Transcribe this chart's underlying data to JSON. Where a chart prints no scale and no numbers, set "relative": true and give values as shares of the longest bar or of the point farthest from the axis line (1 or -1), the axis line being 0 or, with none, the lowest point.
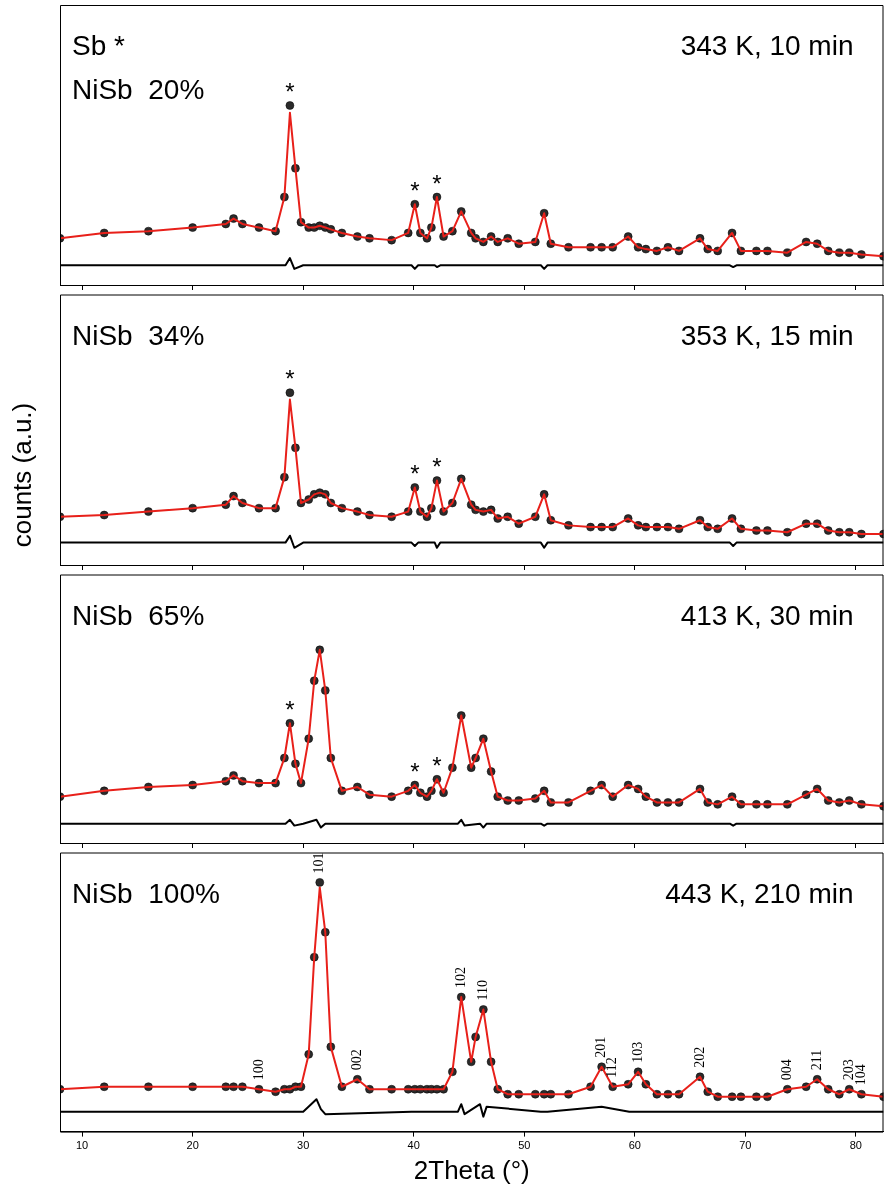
{
  "chart_data": [
    {
      "type": "scatter",
      "relative": true,
      "legend": false,
      "grid": false,
      "tick_labels": false,
      "xlim": [
        8,
        82.5
      ],
      "xticks": [
        10,
        20,
        30,
        40,
        50,
        60,
        70,
        80
      ],
      "annotations": [
        "Sb *",
        "NiSb  20%",
        "343 K, 10 min",
        {
          "text": "*",
          "x": 28.8,
          "y": 1
        },
        {
          "text": "*",
          "x": 40.1,
          "y": 0.45
        },
        {
          "text": "*",
          "x": 42.1,
          "y": 0.49
        }
      ],
      "x": [
        8,
        12,
        16,
        20,
        23,
        23.7,
        24.5,
        26,
        27.5,
        28.3,
        28.8,
        29.3,
        29.8,
        30.5,
        31,
        31.5,
        32,
        32.5,
        33.5,
        34.9,
        36,
        38,
        39.5,
        40.1,
        40.6,
        41.2,
        41.6,
        42.1,
        42.7,
        43.5,
        44.3,
        45.2,
        45.6,
        46.3,
        47,
        47.6,
        48.5,
        49.5,
        51,
        51.8,
        52.4,
        54,
        56,
        57,
        58,
        59.4,
        60.3,
        61,
        62,
        63,
        64,
        65.9,
        66.6,
        67.5,
        68.8,
        69.6,
        71,
        72,
        73.8,
        75.5,
        76.5,
        77.5,
        78.5,
        79.4,
        80.5,
        82.5
      ],
      "series": [
        {
          "type": "scatter",
          "marker": "circle",
          "color": "#2b2b2b",
          "values": [
            0.26,
            0.29,
            0.3,
            0.32,
            0.34,
            0.37,
            0.34,
            0.32,
            0.3,
            0.49,
            1,
            0.65,
            0.35,
            0.32,
            0.32,
            0.33,
            0.32,
            0.31,
            0.29,
            0.27,
            0.26,
            0.25,
            0.29,
            0.45,
            0.29,
            0.26,
            0.32,
            0.49,
            0.27,
            0.3,
            0.41,
            0.29,
            0.26,
            0.24,
            0.27,
            0.24,
            0.26,
            0.23,
            0.24,
            0.4,
            0.23,
            0.21,
            0.21,
            0.21,
            0.21,
            0.27,
            0.21,
            0.2,
            0.19,
            0.21,
            0.19,
            0.26,
            0.2,
            0.19,
            0.29,
            0.19,
            0.19,
            0.19,
            0.18,
            0.24,
            0.23,
            0.19,
            0.18,
            0.18,
            0.17,
            0.16
          ]
        },
        {
          "type": "line",
          "color": "#e8201a",
          "values": [
            0.26,
            0.29,
            0.3,
            0.32,
            0.34,
            0.37,
            0.34,
            0.32,
            0.3,
            0.49,
            0.96,
            0.65,
            0.35,
            0.32,
            0.32,
            0.33,
            0.32,
            0.31,
            0.29,
            0.27,
            0.26,
            0.25,
            0.29,
            0.45,
            0.29,
            0.26,
            0.32,
            0.49,
            0.27,
            0.3,
            0.41,
            0.29,
            0.26,
            0.24,
            0.27,
            0.24,
            0.26,
            0.23,
            0.24,
            0.4,
            0.23,
            0.21,
            0.21,
            0.21,
            0.21,
            0.27,
            0.21,
            0.2,
            0.19,
            0.21,
            0.19,
            0.26,
            0.2,
            0.19,
            0.29,
            0.19,
            0.19,
            0.19,
            0.18,
            0.24,
            0.23,
            0.19,
            0.18,
            0.18,
            0.17,
            0.16
          ]
        },
        {
          "type": "line",
          "color": "#000000",
          "x": [
            8,
            20,
            28.4,
            28.8,
            29.2,
            30,
            31.2,
            31.6,
            32,
            39.8,
            40.1,
            40.4,
            41.9,
            42.1,
            42.4,
            44,
            44.3,
            44.6,
            46,
            46.3,
            46.6,
            51.5,
            51.8,
            52.1,
            57,
            59.5,
            68.6,
            68.9,
            69.2,
            82.5
          ],
          "values": [
            0.11,
            0.11,
            0.11,
            0.15,
            0.09,
            0.11,
            0.11,
            0.11,
            0.11,
            0.11,
            0.09,
            0.11,
            0.11,
            0.1,
            0.11,
            0.11,
            0.11,
            0.11,
            0.11,
            0.11,
            0.11,
            0.11,
            0.09,
            0.11,
            0.11,
            0.11,
            0.11,
            0.1,
            0.11,
            0.11
          ]
        }
      ]
    },
    {
      "type": "scatter",
      "relative": true,
      "legend": false,
      "grid": false,
      "tick_labels": false,
      "xlim": [
        8,
        82.5
      ],
      "xticks": [
        10,
        20,
        30,
        40,
        50,
        60,
        70,
        80
      ],
      "ylabel": "counts (a.u.)",
      "annotations": [
        "NiSb  34%",
        "353 K, 15 min",
        {
          "text": "*",
          "x": 28.8,
          "y": 1
        },
        {
          "text": "*",
          "x": 40.1,
          "y": 0.45
        },
        {
          "text": "*",
          "x": 42.1,
          "y": 0.49
        }
      ],
      "x": [
        8,
        12,
        16,
        20,
        23,
        23.7,
        24.5,
        26,
        27.5,
        28.3,
        28.8,
        29.3,
        29.8,
        30.5,
        31,
        31.5,
        32,
        32.5,
        33.5,
        34.9,
        36,
        38,
        39.5,
        40.1,
        40.6,
        41.2,
        41.6,
        42.1,
        42.7,
        43.5,
        44.3,
        45.2,
        45.6,
        46.3,
        47,
        47.6,
        48.5,
        49.5,
        51,
        51.8,
        52.4,
        54,
        56,
        57,
        58,
        59.4,
        60.3,
        61,
        62,
        63,
        64,
        65.9,
        66.6,
        67.5,
        68.8,
        69.6,
        71,
        72,
        73.8,
        75.5,
        76.5,
        77.5,
        78.5,
        79.4,
        80.5,
        82.5
      ],
      "series": [
        {
          "type": "scatter",
          "marker": "circle",
          "color": "#2b2b2b",
          "values": [
            0.28,
            0.29,
            0.31,
            0.33,
            0.35,
            0.4,
            0.36,
            0.33,
            0.33,
            0.51,
            1,
            0.68,
            0.36,
            0.38,
            0.41,
            0.42,
            0.41,
            0.36,
            0.33,
            0.31,
            0.29,
            0.28,
            0.31,
            0.45,
            0.31,
            0.28,
            0.33,
            0.49,
            0.31,
            0.36,
            0.5,
            0.35,
            0.32,
            0.31,
            0.32,
            0.27,
            0.28,
            0.24,
            0.28,
            0.41,
            0.26,
            0.23,
            0.22,
            0.22,
            0.22,
            0.27,
            0.23,
            0.22,
            0.22,
            0.22,
            0.21,
            0.26,
            0.22,
            0.21,
            0.27,
            0.21,
            0.2,
            0.2,
            0.19,
            0.24,
            0.24,
            0.2,
            0.19,
            0.19,
            0.18,
            0.18
          ]
        },
        {
          "type": "line",
          "color": "#e8201a",
          "values": [
            0.28,
            0.29,
            0.31,
            0.33,
            0.35,
            0.4,
            0.36,
            0.33,
            0.33,
            0.51,
            0.96,
            0.68,
            0.36,
            0.38,
            0.41,
            0.42,
            0.41,
            0.36,
            0.33,
            0.31,
            0.29,
            0.28,
            0.31,
            0.45,
            0.31,
            0.28,
            0.33,
            0.49,
            0.31,
            0.36,
            0.5,
            0.35,
            0.32,
            0.31,
            0.32,
            0.27,
            0.28,
            0.24,
            0.28,
            0.41,
            0.26,
            0.23,
            0.22,
            0.22,
            0.22,
            0.27,
            0.23,
            0.22,
            0.22,
            0.22,
            0.21,
            0.26,
            0.22,
            0.21,
            0.27,
            0.21,
            0.2,
            0.2,
            0.19,
            0.24,
            0.24,
            0.2,
            0.19,
            0.19,
            0.18,
            0.18
          ]
        },
        {
          "type": "line",
          "color": "#000000",
          "x": [
            8,
            20,
            28.4,
            28.8,
            29.2,
            30,
            31.2,
            31.6,
            32,
            39.8,
            40.1,
            40.4,
            41.9,
            42.1,
            42.4,
            44,
            44.3,
            44.6,
            46,
            46.3,
            46.6,
            51.5,
            51.8,
            52.1,
            57,
            59.5,
            68.6,
            68.9,
            69.2,
            82.5
          ],
          "values": [
            0.13,
            0.13,
            0.13,
            0.17,
            0.1,
            0.13,
            0.13,
            0.13,
            0.13,
            0.13,
            0.11,
            0.13,
            0.13,
            0.1,
            0.13,
            0.13,
            0.13,
            0.13,
            0.13,
            0.13,
            0.13,
            0.13,
            0.1,
            0.13,
            0.13,
            0.13,
            0.13,
            0.11,
            0.13,
            0.13
          ]
        }
      ]
    },
    {
      "type": "scatter",
      "relative": true,
      "legend": false,
      "grid": false,
      "tick_labels": false,
      "xlim": [
        8,
        82.5
      ],
      "xticks": [
        10,
        20,
        30,
        40,
        50,
        60,
        70,
        80
      ],
      "annotations": [
        "NiSb  65%",
        "413 K, 30 min",
        {
          "text": "*",
          "x": 28.8,
          "y": 0.62
        },
        {
          "text": "*",
          "x": 40.1,
          "y": 0.3
        },
        {
          "text": "*",
          "x": 42.1,
          "y": 0.33
        }
      ],
      "x": [
        8,
        12,
        16,
        20,
        23,
        23.7,
        24.5,
        26,
        27.5,
        28.3,
        28.8,
        29.3,
        29.8,
        30.5,
        31,
        31.5,
        32,
        32.5,
        33.5,
        34.9,
        36,
        38,
        39.5,
        40.1,
        40.6,
        41.2,
        41.6,
        42.1,
        42.7,
        43.5,
        44.3,
        45.2,
        45.6,
        46.3,
        47,
        47.6,
        48.5,
        49.5,
        51,
        51.8,
        52.4,
        54,
        56,
        57,
        58,
        59.4,
        60.3,
        61,
        62,
        63,
        64,
        65.9,
        66.6,
        67.5,
        68.8,
        69.6,
        71,
        72,
        73.8,
        75.5,
        76.5,
        77.5,
        78.5,
        79.4,
        80.5,
        82.5
      ],
      "series": [
        {
          "type": "scatter",
          "marker": "circle",
          "color": "#2b2b2b",
          "values": [
            0.24,
            0.27,
            0.29,
            0.3,
            0.32,
            0.35,
            0.32,
            0.31,
            0.31,
            0.44,
            0.62,
            0.41,
            0.31,
            0.54,
            0.84,
            1,
            0.79,
            0.44,
            0.27,
            0.29,
            0.25,
            0.24,
            0.27,
            0.3,
            0.26,
            0.24,
            0.27,
            0.33,
            0.26,
            0.39,
            0.66,
            0.39,
            0.44,
            0.54,
            0.37,
            0.24,
            0.22,
            0.22,
            0.23,
            0.27,
            0.21,
            0.21,
            0.27,
            0.3,
            0.24,
            0.3,
            0.28,
            0.24,
            0.21,
            0.21,
            0.21,
            0.28,
            0.21,
            0.2,
            0.24,
            0.2,
            0.2,
            0.2,
            0.2,
            0.25,
            0.28,
            0.22,
            0.21,
            0.22,
            0.2,
            0.19
          ]
        },
        {
          "type": "line",
          "color": "#e8201a",
          "values": [
            0.24,
            0.27,
            0.29,
            0.3,
            0.32,
            0.35,
            0.32,
            0.31,
            0.31,
            0.44,
            0.62,
            0.41,
            0.31,
            0.54,
            0.84,
            1,
            0.79,
            0.44,
            0.27,
            0.29,
            0.25,
            0.24,
            0.27,
            0.3,
            0.26,
            0.24,
            0.27,
            0.33,
            0.26,
            0.39,
            0.66,
            0.39,
            0.44,
            0.54,
            0.37,
            0.24,
            0.22,
            0.22,
            0.23,
            0.27,
            0.21,
            0.21,
            0.27,
            0.3,
            0.24,
            0.3,
            0.28,
            0.24,
            0.21,
            0.21,
            0.21,
            0.28,
            0.21,
            0.2,
            0.24,
            0.2,
            0.2,
            0.2,
            0.2,
            0.25,
            0.28,
            0.22,
            0.21,
            0.22,
            0.2,
            0.19
          ]
        },
        {
          "type": "line",
          "color": "#000000",
          "x": [
            8,
            20,
            28.4,
            28.8,
            29.2,
            30,
            31.2,
            31.6,
            32,
            39.8,
            40.1,
            40.4,
            41.9,
            42.1,
            42.4,
            44,
            44.3,
            44.6,
            46,
            46.3,
            46.6,
            51.5,
            51.8,
            52.1,
            57,
            59.5,
            68.6,
            68.9,
            69.2,
            82.5
          ],
          "values": [
            0.1,
            0.1,
            0.1,
            0.12,
            0.09,
            0.1,
            0.12,
            0.08,
            0.1,
            0.1,
            0.1,
            0.1,
            0.1,
            0.1,
            0.1,
            0.1,
            0.12,
            0.09,
            0.1,
            0.08,
            0.1,
            0.1,
            0.09,
            0.1,
            0.1,
            0.1,
            0.1,
            0.09,
            0.1,
            0.1
          ]
        }
      ]
    },
    {
      "type": "scatter",
      "relative": true,
      "legend": false,
      "grid": false,
      "tick_labels": "x",
      "xlim": [
        8,
        82.5
      ],
      "xticks": [
        10,
        20,
        30,
        40,
        50,
        60,
        70,
        80
      ],
      "xlabel": "2Theta (°)",
      "annotations": [
        "NiSb  100%",
        "443 K, 210 min",
        {
          "text": "100",
          "x": 26,
          "y": 0.17
        },
        {
          "text": "101",
          "x": 31.5,
          "y": 1
        },
        {
          "text": "002",
          "x": 34.9,
          "y": 0.21
        },
        {
          "text": "102",
          "x": 44.3,
          "y": 0.54
        },
        {
          "text": "110",
          "x": 46.3,
          "y": 0.49
        },
        {
          "text": "201",
          "x": 57,
          "y": 0.26
        },
        {
          "text": "112",
          "x": 58,
          "y": 0.18
        },
        {
          "text": "103",
          "x": 60.3,
          "y": 0.24
        },
        {
          "text": "202",
          "x": 65.9,
          "y": 0.22
        },
        {
          "text": "004",
          "x": 73.8,
          "y": 0.17
        },
        {
          "text": "211",
          "x": 76.5,
          "y": 0.21
        },
        {
          "text": "203",
          "x": 79.4,
          "y": 0.17
        },
        {
          "text": "104",
          "x": 80.5,
          "y": 0.15
        }
      ],
      "x": [
        8,
        12,
        16,
        20,
        23,
        23.7,
        24.5,
        26,
        27.5,
        28.3,
        28.8,
        29.3,
        29.8,
        30.5,
        31,
        31.5,
        32,
        32.5,
        33.5,
        34.9,
        36,
        38,
        39.5,
        40.1,
        40.6,
        41.2,
        41.6,
        42.1,
        42.7,
        43.5,
        44.3,
        45.2,
        45.6,
        46.3,
        47,
        47.6,
        48.5,
        49.5,
        51,
        51.8,
        52.4,
        54,
        56,
        57,
        58,
        59.4,
        60.3,
        61,
        62,
        63,
        64,
        65.9,
        66.6,
        67.5,
        68.8,
        69.6,
        71,
        72,
        73.8,
        75.5,
        76.5,
        77.5,
        78.5,
        79.4,
        80.5,
        82.5
      ],
      "series": [
        {
          "type": "scatter",
          "marker": "circle",
          "color": "#2b2b2b",
          "values": [
            0.17,
            0.18,
            0.18,
            0.18,
            0.18,
            0.18,
            0.18,
            0.17,
            0.16,
            0.17,
            0.17,
            0.18,
            0.18,
            0.31,
            0.7,
            1,
            0.8,
            0.34,
            0.18,
            0.21,
            0.17,
            0.17,
            0.17,
            0.17,
            0.17,
            0.17,
            0.17,
            0.17,
            0.17,
            0.24,
            0.54,
            0.28,
            0.38,
            0.49,
            0.28,
            0.17,
            0.15,
            0.15,
            0.15,
            0.15,
            0.15,
            0.15,
            0.18,
            0.26,
            0.18,
            0.19,
            0.24,
            0.19,
            0.15,
            0.15,
            0.15,
            0.22,
            0.16,
            0.14,
            0.14,
            0.14,
            0.14,
            0.14,
            0.17,
            0.18,
            0.21,
            0.17,
            0.15,
            0.17,
            0.15,
            0.14
          ]
        },
        {
          "type": "line",
          "color": "#e8201a",
          "values": [
            0.17,
            0.18,
            0.18,
            0.18,
            0.18,
            0.18,
            0.18,
            0.17,
            0.16,
            0.17,
            0.17,
            0.18,
            0.18,
            0.31,
            0.7,
            0.98,
            0.8,
            0.34,
            0.18,
            0.21,
            0.17,
            0.17,
            0.17,
            0.17,
            0.17,
            0.17,
            0.17,
            0.17,
            0.17,
            0.24,
            0.54,
            0.28,
            0.38,
            0.49,
            0.28,
            0.17,
            0.15,
            0.15,
            0.15,
            0.15,
            0.15,
            0.15,
            0.18,
            0.26,
            0.18,
            0.19,
            0.24,
            0.19,
            0.15,
            0.15,
            0.15,
            0.22,
            0.16,
            0.14,
            0.14,
            0.14,
            0.14,
            0.14,
            0.17,
            0.18,
            0.21,
            0.17,
            0.15,
            0.17,
            0.15,
            0.14
          ]
        },
        {
          "type": "line",
          "color": "#000000",
          "x": [
            8,
            20,
            28.4,
            28.8,
            29.2,
            30,
            31.2,
            31.6,
            32,
            39.8,
            40.1,
            40.4,
            41.9,
            42.1,
            42.4,
            44,
            44.3,
            44.6,
            46,
            46.3,
            46.6,
            51.5,
            51.8,
            52.1,
            57,
            59.5,
            68.6,
            68.9,
            69.2,
            82.5
          ],
          "values": [
            0.08,
            0.08,
            0.08,
            0.08,
            0.08,
            0.08,
            0.13,
            0.09,
            0.07,
            0.08,
            0.08,
            0.08,
            0.08,
            0.08,
            0.08,
            0.08,
            0.11,
            0.07,
            0.11,
            0.06,
            0.1,
            0.08,
            0.08,
            0.08,
            0.1,
            0.08,
            0.08,
            0.08,
            0.08,
            0.08
          ]
        }
      ]
    }
  ]
}
